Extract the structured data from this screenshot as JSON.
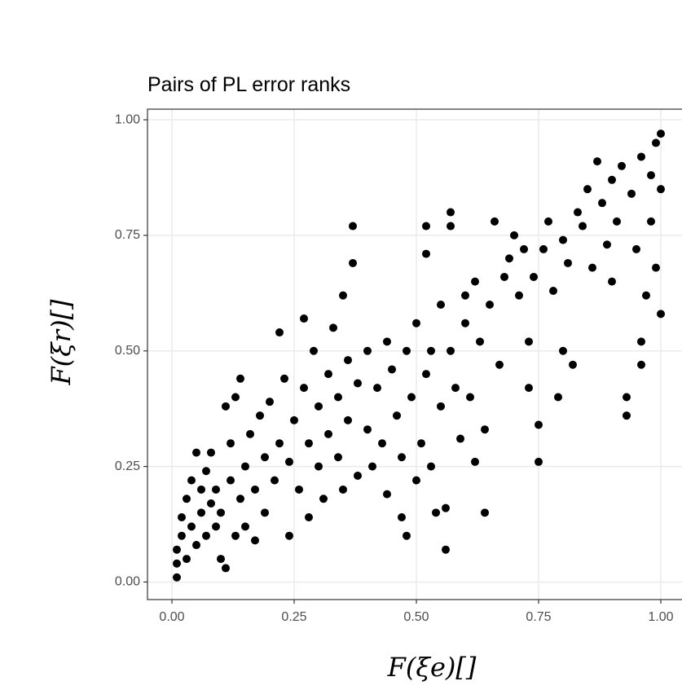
{
  "chart_data": {
    "type": "scatter",
    "title": "Pairs of PL error ranks",
    "xlabel": "F(ξe)[]",
    "ylabel": "F(ξr)[]",
    "color": "#000000",
    "grid": true,
    "xlim": [
      -0.05,
      1.05
    ],
    "ylim": [
      -0.038,
      1.023
    ],
    "xticks": [
      {
        "value": 0,
        "label": "0.00"
      },
      {
        "value": 0.25,
        "label": "0.25"
      },
      {
        "value": 0.5,
        "label": "0.50"
      },
      {
        "value": 0.75,
        "label": "0.75"
      },
      {
        "value": 1,
        "label": "1.00"
      }
    ],
    "yticks": [
      {
        "value": 0,
        "label": "0.00"
      },
      {
        "value": 0.25,
        "label": "0.25"
      },
      {
        "value": 0.5,
        "label": "0.50"
      },
      {
        "value": 0.75,
        "label": "0.75"
      },
      {
        "value": 1,
        "label": "1.00"
      }
    ],
    "x": [
      0.01,
      0.01,
      0.01,
      0.02,
      0.02,
      0.03,
      0.03,
      0.04,
      0.04,
      0.05,
      0.05,
      0.06,
      0.06,
      0.07,
      0.07,
      0.08,
      0.08,
      0.09,
      0.09,
      0.1,
      0.1,
      0.11,
      0.11,
      0.12,
      0.12,
      0.13,
      0.13,
      0.14,
      0.14,
      0.15,
      0.15,
      0.16,
      0.17,
      0.17,
      0.18,
      0.19,
      0.19,
      0.2,
      0.21,
      0.22,
      0.22,
      0.23,
      0.24,
      0.24,
      0.25,
      0.26,
      0.27,
      0.27,
      0.28,
      0.28,
      0.29,
      0.3,
      0.3,
      0.31,
      0.32,
      0.32,
      0.33,
      0.34,
      0.34,
      0.35,
      0.35,
      0.36,
      0.36,
      0.37,
      0.37,
      0.38,
      0.38,
      0.4,
      0.4,
      0.41,
      0.42,
      0.43,
      0.44,
      0.44,
      0.45,
      0.46,
      0.47,
      0.47,
      0.48,
      0.48,
      0.49,
      0.5,
      0.5,
      0.51,
      0.52,
      0.52,
      0.52,
      0.53,
      0.53,
      0.54,
      0.55,
      0.55,
      0.56,
      0.56,
      0.57,
      0.57,
      0.57,
      0.58,
      0.59,
      0.6,
      0.6,
      0.61,
      0.62,
      0.62,
      0.63,
      0.64,
      0.64,
      0.65,
      0.66,
      0.67,
      0.68,
      0.69,
      0.7,
      0.71,
      0.72,
      0.73,
      0.73,
      0.74,
      0.75,
      0.75,
      0.76,
      0.77,
      0.78,
      0.79,
      0.8,
      0.8,
      0.81,
      0.82,
      0.83,
      0.84,
      0.85,
      0.86,
      0.87,
      0.88,
      0.89,
      0.9,
      0.9,
      0.91,
      0.92,
      0.93,
      0.93,
      0.94,
      0.95,
      0.96,
      0.96,
      0.96,
      0.97,
      0.98,
      0.98,
      0.99,
      0.99,
      1.0,
      1.0,
      1.0
    ],
    "y": [
      0.01,
      0.04,
      0.07,
      0.1,
      0.14,
      0.05,
      0.18,
      0.12,
      0.22,
      0.08,
      0.28,
      0.15,
      0.2,
      0.1,
      0.24,
      0.17,
      0.28,
      0.12,
      0.2,
      0.05,
      0.15,
      0.03,
      0.38,
      0.22,
      0.3,
      0.1,
      0.4,
      0.44,
      0.18,
      0.25,
      0.12,
      0.32,
      0.2,
      0.09,
      0.36,
      0.15,
      0.27,
      0.39,
      0.22,
      0.54,
      0.3,
      0.44,
      0.26,
      0.1,
      0.35,
      0.2,
      0.57,
      0.42,
      0.14,
      0.3,
      0.5,
      0.38,
      0.25,
      0.18,
      0.45,
      0.32,
      0.55,
      0.4,
      0.27,
      0.62,
      0.2,
      0.48,
      0.35,
      0.77,
      0.69,
      0.23,
      0.43,
      0.5,
      0.33,
      0.25,
      0.42,
      0.3,
      0.52,
      0.19,
      0.46,
      0.36,
      0.14,
      0.27,
      0.1,
      0.5,
      0.4,
      0.56,
      0.22,
      0.3,
      0.77,
      0.71,
      0.45,
      0.5,
      0.25,
      0.15,
      0.6,
      0.38,
      0.07,
      0.16,
      0.77,
      0.8,
      0.5,
      0.42,
      0.31,
      0.56,
      0.62,
      0.4,
      0.26,
      0.65,
      0.52,
      0.15,
      0.33,
      0.6,
      0.78,
      0.47,
      0.66,
      0.7,
      0.75,
      0.62,
      0.72,
      0.52,
      0.42,
      0.66,
      0.34,
      0.26,
      0.72,
      0.78,
      0.63,
      0.4,
      0.74,
      0.5,
      0.69,
      0.47,
      0.8,
      0.77,
      0.85,
      0.68,
      0.91,
      0.82,
      0.73,
      0.87,
      0.65,
      0.78,
      0.9,
      0.36,
      0.4,
      0.84,
      0.72,
      0.92,
      0.47,
      0.52,
      0.62,
      0.88,
      0.78,
      0.95,
      0.68,
      0.97,
      0.85,
      0.58
    ]
  }
}
